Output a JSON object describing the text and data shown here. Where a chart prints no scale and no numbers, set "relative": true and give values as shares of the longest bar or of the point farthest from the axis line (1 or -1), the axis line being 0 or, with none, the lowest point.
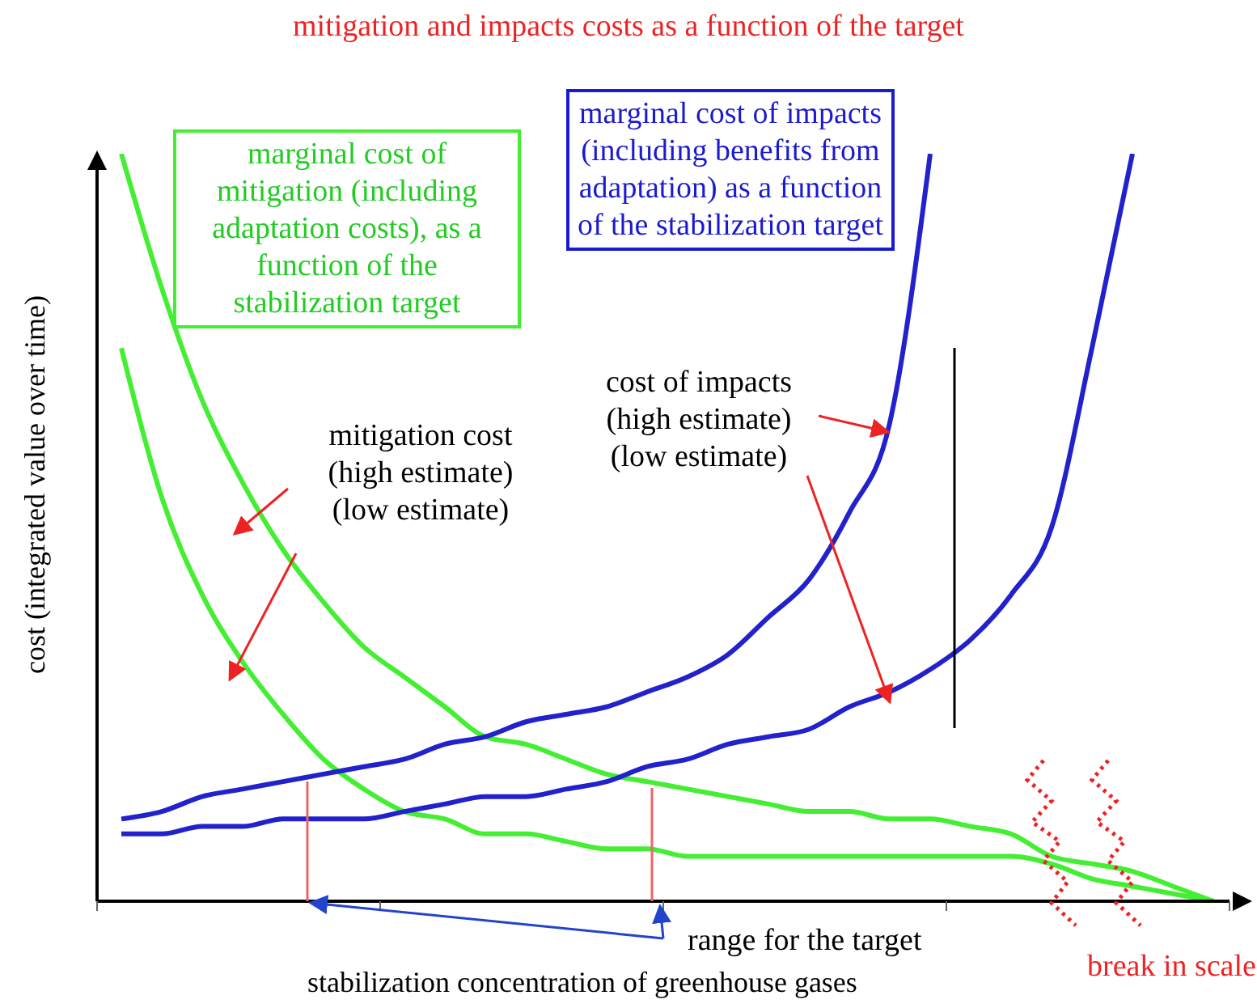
{
  "chart_data": {
    "type": "line",
    "relative": true,
    "title": "mitigation and impacts costs as a function of the target",
    "xlabel": "stabilization concentration of greenhouse gases",
    "ylabel": "cost (integrated value over time)",
    "annotations": [
      "marginal cost of mitigation (including adaptation costs), as a function of the stabilization target",
      "marginal cost of impacts (including benefits from adaptation) as a function of the stabilization target",
      "mitigation cost\n(high estimate)\n(low estimate)",
      "cost of impacts\n(high estimate)\n(low estimate)",
      "range for the target",
      "break in scale"
    ],
    "categories": [
      null,
      null,
      null,
      null,
      null,
      null,
      null,
      null,
      null,
      null,
      null,
      null,
      null,
      null,
      null,
      null,
      null,
      null,
      null,
      null,
      null,
      null,
      null,
      null,
      null,
      null,
      null,
      null
    ],
    "series": [
      {
        "color": "#44ee33",
        "values": [
          1.0,
          0.82,
          0.67,
          0.56,
          0.47,
          0.4,
          0.34,
          0.3,
          0.26,
          0.22,
          0.21,
          0.19,
          0.17,
          0.16,
          0.15,
          0.14,
          0.13,
          0.12,
          0.12,
          0.11,
          0.11,
          0.1,
          0.09,
          0.06,
          0.05,
          0.04,
          0.02,
          0.0
        ]
      },
      {
        "color": "#44ee33",
        "values": [
          0.74,
          0.54,
          0.41,
          0.32,
          0.25,
          0.19,
          0.15,
          0.12,
          0.11,
          0.09,
          0.09,
          0.08,
          0.07,
          0.07,
          0.06,
          0.06,
          0.06,
          0.06,
          0.06,
          0.06,
          0.06,
          0.06,
          0.06,
          0.05,
          0.03,
          0.02,
          0.01,
          0.0
        ]
      },
      {
        "color": "#2222cc",
        "values": [
          0.11,
          0.12,
          0.14,
          0.15,
          0.16,
          0.17,
          0.18,
          0.19,
          0.21,
          0.22,
          0.24,
          0.25,
          0.26,
          0.28,
          0.3,
          0.33,
          0.38,
          0.43,
          0.52,
          0.64,
          1.0,
          null,
          null,
          null,
          null,
          null,
          null,
          null
        ]
      },
      {
        "color": "#2222cc",
        "values": [
          0.09,
          0.09,
          0.1,
          0.1,
          0.11,
          0.11,
          0.11,
          0.12,
          0.13,
          0.14,
          0.14,
          0.15,
          0.16,
          0.18,
          0.19,
          0.21,
          0.22,
          0.23,
          0.26,
          0.28,
          0.31,
          0.35,
          0.41,
          0.5,
          0.74,
          1.0,
          null,
          null
        ]
      }
    ],
    "grid": false,
    "legend": false,
    "marker": "none",
    "line_style": "solid"
  }
}
